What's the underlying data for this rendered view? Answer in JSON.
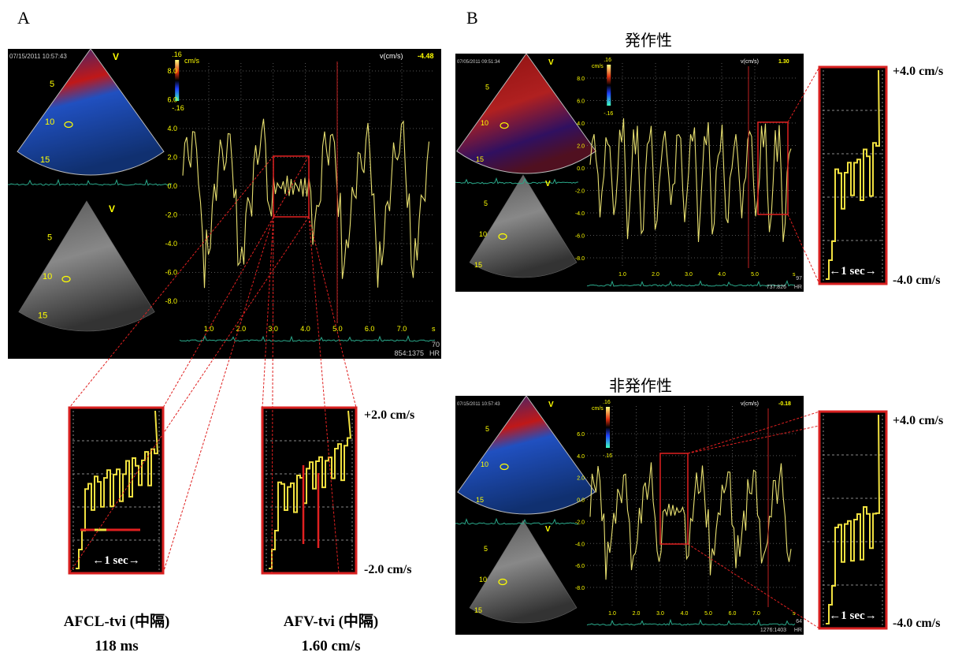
{
  "panel_a": {
    "label": "A",
    "screen": {
      "timestamp": "07/15/2011 10:57:43",
      "probe": "V",
      "scale_top": ".16",
      "scale_bottom": "-.16",
      "unit": "cm/s",
      "readout_label": "v(cm/s)",
      "readout_value": "-4.48",
      "yticks": [
        "8.0",
        "6.0",
        "4.0",
        "2.0",
        "0.0",
        "-2.0",
        "-4.0",
        "-6.0",
        "-8.0"
      ],
      "xticks": [
        "1.0",
        "2.0",
        "3.0",
        "4.0",
        "5.0",
        "6.0",
        "7.0"
      ],
      "x_unit": "s",
      "depths": [
        "5",
        "10",
        "15"
      ],
      "frame": "854:1375",
      "hr_label": "HR",
      "hr": "70"
    },
    "time_scale": "←1 sec→",
    "zoom_scale_top": "+2.0 cm/s",
    "zoom_scale_bottom": "-2.0 cm/s",
    "metrics": [
      {
        "name": "AFCL-tvi (中隔)",
        "value": "118 ms"
      },
      {
        "name": "AFV-tvi (中隔)",
        "value": "1.60 cm/s"
      }
    ]
  },
  "panel_b": {
    "label": "B",
    "paroxysmal": {
      "title": "発作性",
      "screen": {
        "timestamp": "07/05/2011 09:51:34",
        "probe": "V",
        "scale_top": ".16",
        "scale_bottom": "-.16",
        "unit": "cm/s",
        "readout_label": "v(cm/s)",
        "readout_value": "1.30",
        "yticks": [
          "8.0",
          "6.0",
          "4.0",
          "2.0",
          "0.0",
          "-2.0",
          "-4.0",
          "-6.0",
          "-8.0"
        ],
        "xticks": [
          "1.0",
          "2.0",
          "3.0",
          "4.0",
          "5.0"
        ],
        "x_unit": "s",
        "depths": [
          "5",
          "10",
          "15"
        ],
        "frame": "737:826",
        "hr_label": "HR",
        "hr": "97"
      },
      "time_scale": "←1 sec→",
      "zoom_scale_top": "+4.0 cm/s",
      "zoom_scale_bottom": "-4.0 cm/s"
    },
    "persistent": {
      "title": "非発作性",
      "screen": {
        "timestamp": "07/15/2011 10:57:43",
        "probe": "V",
        "scale_top": ".16",
        "scale_bottom": "-.16",
        "unit": "cm/s",
        "readout_label": "v(cm/s)",
        "readout_value": "-0.18",
        "yticks": [
          "6.0",
          "4.0",
          "2.0",
          "0.0",
          "-2.0",
          "-4.0",
          "-6.0",
          "-8.0"
        ],
        "xticks": [
          "1.0",
          "2.0",
          "3.0",
          "4.0",
          "5.0",
          "6.0",
          "7.0"
        ],
        "x_unit": "s",
        "depths": [
          "5",
          "10",
          "15"
        ],
        "frame": "1276:1403",
        "hr_label": "HR",
        "hr": "64"
      },
      "time_scale": "←1 sec→",
      "zoom_scale_top": "+4.0 cm/s",
      "zoom_scale_bottom": "-4.0 cm/s"
    }
  }
}
